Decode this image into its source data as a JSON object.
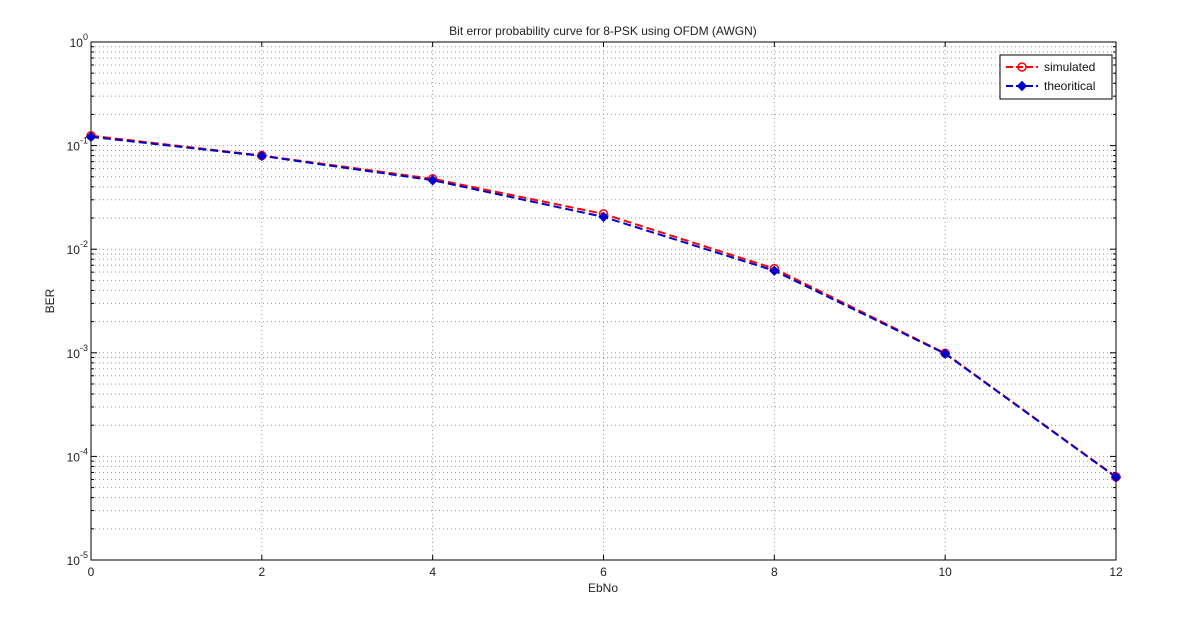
{
  "chart_data": {
    "type": "line",
    "title": "Bit error probability curve for 8-PSK using OFDM (AWGN)",
    "xlabel": "EbNo",
    "ylabel": "BER",
    "x": [
      0,
      2,
      4,
      6,
      8,
      10,
      12
    ],
    "xlim": [
      0,
      12
    ],
    "xticks": [
      "0",
      "2",
      "4",
      "6",
      "8",
      "10",
      "12"
    ],
    "ylim": [
      1e-05,
      1
    ],
    "yscale": "log",
    "yticks": [
      {
        "base": "10",
        "exp": "0"
      },
      {
        "base": "10",
        "exp": "-1"
      },
      {
        "base": "10",
        "exp": "-2"
      },
      {
        "base": "10",
        "exp": "-3"
      },
      {
        "base": "10",
        "exp": "-4"
      },
      {
        "base": "10",
        "exp": "-5"
      }
    ],
    "grid": true,
    "legend_position": "top-right",
    "series": [
      {
        "name": "simulated",
        "values": [
          0.1245,
          0.0802,
          0.0478,
          0.0219,
          0.0065,
          0.00099,
          6.35e-05
        ],
        "color": "#ff0000",
        "marker": "circle",
        "linestyle": "dashed"
      },
      {
        "name": "theoritical",
        "values": [
          0.1215,
          0.0795,
          0.0463,
          0.0205,
          0.0062,
          0.00098,
          6.3e-05
        ],
        "color": "#0000cc",
        "marker": "diamond-filled",
        "linestyle": "dashed"
      }
    ]
  }
}
